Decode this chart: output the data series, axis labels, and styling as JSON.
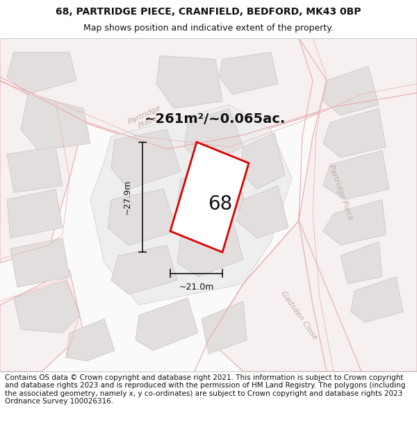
{
  "title_line1": "68, PARTRIDGE PIECE, CRANFIELD, BEDFORD, MK43 0BP",
  "title_line2": "Map shows position and indicative extent of the property.",
  "footer_text": "Contains OS data © Crown copyright and database right 2021. This information is subject to Crown copyright and database rights 2023 and is reproduced with the permission of HM Land Registry. The polygons (including the associated geometry, namely x, y co-ordinates) are subject to Crown copyright and database rights 2023 Ordnance Survey 100026316.",
  "area_label": "~261m²/~0.065ac.",
  "number_label": "68",
  "dim_width": "~21.0m",
  "dim_height": "~27.9m",
  "map_bg": "#fafafa",
  "road_fill": "#f7f0f0",
  "road_stroke": "#e8aaaa",
  "block_fill": "#e2dede",
  "block_stroke": "#c8c0c0",
  "highlight_stroke": "#dd0000",
  "highlight_fill": "#ffffff",
  "dim_color": "#111111",
  "street_label_color": "#c0aaaa",
  "title_fontsize": 10,
  "subtitle_fontsize": 9,
  "footer_fontsize": 7.5,
  "area_fontsize": 14,
  "number_fontsize": 20,
  "dim_fontsize": 9
}
